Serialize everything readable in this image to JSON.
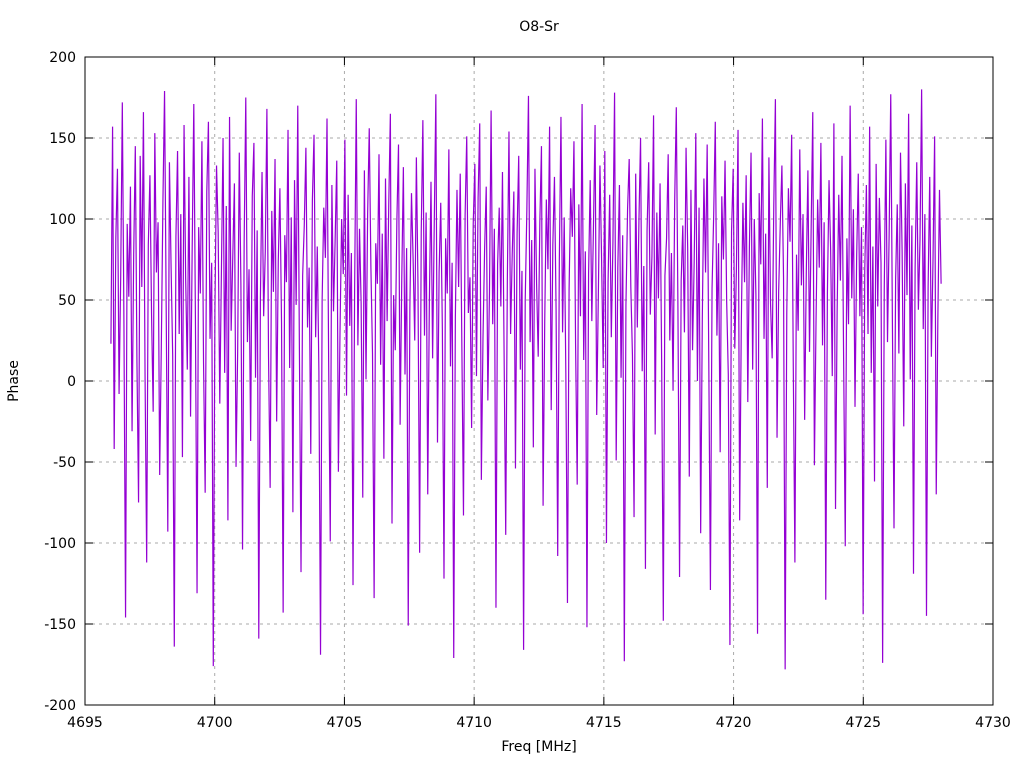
{
  "chart_data": {
    "type": "line",
    "title": "O8-Sr",
    "xlabel": "Freq [MHz]",
    "ylabel": "Phase",
    "xlim": [
      4695,
      4730
    ],
    "ylim": [
      -200,
      200
    ],
    "xticks": [
      4695,
      4700,
      4705,
      4710,
      4715,
      4720,
      4725,
      4730
    ],
    "yticks": [
      -200,
      -150,
      -100,
      -50,
      0,
      50,
      100,
      150,
      200
    ],
    "grid": true,
    "legend_position": "none",
    "background_color": "#ffffff",
    "grid_color": "#aaaaaa",
    "axis_color": "#000000",
    "series": [
      {
        "name": "O8-Sr phase",
        "color": "#9400d3",
        "x_start": 4696.0,
        "x_end": 4728.0,
        "y_values": [
          23,
          157,
          -42,
          88,
          131,
          -8,
          64,
          172,
          35,
          -146,
          97,
          52,
          120,
          -31,
          78,
          145,
          12,
          -75,
          139,
          58,
          166,
          3,
          -112,
          84,
          127,
          41,
          -19,
          153,
          67,
          98,
          -58,
          21,
          111,
          179,
          46,
          -93,
          135,
          72,
          16,
          -164,
          89,
          142,
          29,
          103,
          -47,
          158,
          63,
          7,
          126,
          -22,
          81,
          171,
          38,
          -131,
          95,
          54,
          148,
          11,
          -69,
          117,
          160,
          26,
          73,
          -176,
          44,
          133,
          92,
          -14,
          68,
          150,
          5,
          108,
          -86,
          163,
          31,
          77,
          122,
          -53,
          18,
          141,
          59,
          -104,
          86,
          175,
          24,
          69,
          -37,
          114,
          147,
          2,
          93,
          -159,
          51,
          129,
          40,
          80,
          168,
          15,
          -66,
          105,
          55,
          137,
          -25,
          74,
          119,
          36,
          -143,
          90,
          61,
          155,
          8,
          101,
          -81,
          124,
          47,
          170,
          20,
          -118,
          65,
          96,
          144,
          33,
          70,
          -45,
          112,
          152,
          27,
          83,
          6,
          -169,
          50,
          107,
          76,
          162,
          13,
          -99,
          121,
          43,
          87,
          136,
          -56,
          30,
          100,
          66,
          149,
          -9,
          115,
          34,
          79,
          -126,
          57,
          174,
          22,
          94,
          48,
          -72,
          130,
          1,
          103,
          156,
          71,
          17,
          -134,
          85,
          60,
          140,
          10,
          91,
          -48,
          125,
          37,
          109,
          165,
          -88,
          53,
          19,
          99,
          146,
          -27,
          62,
          132,
          4,
          82,
          -151,
          45,
          116,
          75,
          25,
          138,
          59,
          -106,
          92,
          161,
          28,
          104,
          -70,
          49,
          123,
          14,
          96,
          177,
          -38,
          67,
          110,
          32,
          -122,
          88,
          54,
          143,
          9,
          73,
          -171,
          39,
          118,
          58,
          128,
          21,
          -83,
          102,
          151,
          42,
          64,
          -29,
          97,
          134,
          3,
          113,
          159,
          -61,
          26,
          81,
          120,
          -12,
          55,
          167,
          35,
          94,
          -140,
          72,
          107,
          46,
          129,
          17,
          -95,
          63,
          154,
          29,
          78,
          117,
          -54,
          91,
          139,
          7,
          68,
          -166,
          50,
          105,
          176,
          24,
          87,
          -41,
          131,
          60,
          15,
          98,
          145,
          -77,
          36,
          112,
          69,
          157,
          -18,
          84,
          126,
          44,
          -108,
          74,
          163,
          30,
          101,
          5,
          -137,
          56,
          119,
          89,
          148,
          23,
          -64,
          109,
          40,
          171,
          13,
          80,
          -152,
          66,
          124,
          37,
          95,
          158,
          -21,
          52,
          133,
          76,
          8,
          142,
          -100,
          61,
          115,
          27,
          86,
          178,
          -49,
          70,
          121,
          2,
          90,
          -173,
          47,
          106,
          137,
          58,
          16,
          -84,
          128,
          33,
          99,
          150,
          6,
          71,
          -116,
          93,
          135,
          41,
          77,
          164,
          -33,
          104,
          51,
          122,
          10,
          -148,
          65,
          88,
          140,
          25,
          79,
          -6,
          111,
          169,
          45,
          -121,
          62,
          96,
          30,
          144,
          82,
          -59,
          118,
          19,
          73,
          153,
          0,
          107,
          -94,
          38,
          125,
          67,
          146,
          11,
          -129,
          57,
          102,
          160,
          28,
          85,
          -44,
          114,
          75,
          136,
          49,
          4,
          -163,
          92,
          131,
          20,
          69,
          155,
          -86,
          34,
          110,
          61,
          127,
          -13,
          83,
          141,
          7,
          100,
          53,
          -156,
          116,
          72,
          162,
          26,
          91,
          -66,
          138,
          48,
          14,
          108,
          174,
          -35,
          55,
          97,
          133,
          64,
          -178,
          42,
          119,
          86,
          152,
          9,
          -112,
          78,
          31,
          143,
          59,
          103,
          -24,
          66,
          130,
          18,
          94,
          166,
          -52,
          36,
          112,
          70,
          147,
          22,
          98,
          -135,
          54,
          124,
          81,
          3,
          159,
          -79,
          43,
          115,
          62,
          139,
          12,
          -102,
          88,
          35,
          170,
          51,
          106,
          -16,
          76,
          128,
          40,
          95,
          -144,
          68,
          121,
          29,
          157,
          5,
          83,
          -62,
          134,
          46,
          113,
          73,
          -174,
          56,
          149,
          24,
          90,
          177,
          38,
          -91,
          63,
          109,
          17,
          141,
          80,
          -28,
          122,
          53,
          165,
          1,
          96,
          -119,
          70,
          135,
          44,
          87,
          180,
          32,
          103,
          -145,
          58,
          126,
          15,
          74,
          151,
          -70,
          39,
          118,
          60
        ]
      }
    ]
  }
}
